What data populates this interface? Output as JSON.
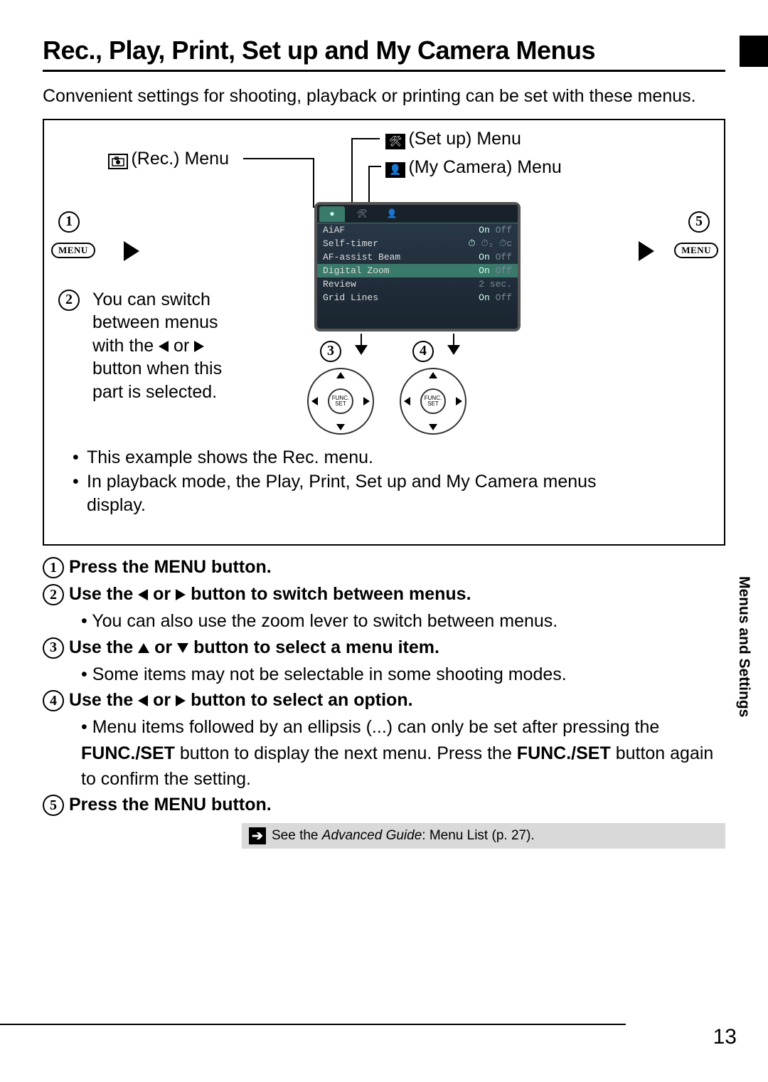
{
  "title": "Rec., Play, Print, Set up and My Camera Menus",
  "intro": "Convenient settings for shooting, playback or printing can be set with these menus.",
  "labels": {
    "rec": "(Rec.) Menu",
    "setup": "(Set up) Menu",
    "mycam": "(My Camera) Menu",
    "menu_btn": "MENU",
    "func": "FUNC.\nSET"
  },
  "switch_text": {
    "l1": "You can switch",
    "l2": "between menus",
    "l3a": "with the ",
    "l3b": " or ",
    "l4": "button when this",
    "l5": "part is selected."
  },
  "screen": {
    "rows": [
      {
        "name": "AiAF",
        "sel": "On",
        "opt": "Off"
      },
      {
        "name": "Self-timer",
        "sel": "⏱",
        "opt": "⏱₂ ⏱ᴄ"
      },
      {
        "name": "AF-assist Beam",
        "sel": "On",
        "opt": "Off"
      },
      {
        "name": "Digital Zoom",
        "sel": "On",
        "opt": "Off",
        "hl": true
      },
      {
        "name": "Review",
        "sel": "",
        "opt": "2 sec."
      },
      {
        "name": "Grid Lines",
        "sel": "On",
        "opt": "Off"
      }
    ]
  },
  "box_bullets": [
    "This example shows the Rec. menu.",
    "In playback mode, the Play, Print, Set up and My Camera menus display."
  ],
  "steps": {
    "s1": "Press the MENU button.",
    "s2a": "Use the ",
    "s2b": " or ",
    "s2c": " button to switch between menus.",
    "s2sub": "You can also use the zoom lever to switch between menus.",
    "s3a": "Use the ",
    "s3b": " or ",
    "s3c": " button to select a menu item.",
    "s3sub": "Some items may not be selectable in some shooting modes.",
    "s4a": "Use the ",
    "s4b": " or ",
    "s4c": " button to select an option.",
    "s4sub1": "Menu items followed by an ellipsis (...) can only be set after pressing the ",
    "s4sub_btn": "FUNC./SET",
    "s4sub2": " button to display the next menu. Press the ",
    "s4sub3": " button again to confirm the setting.",
    "s5": "Press the MENU button."
  },
  "reference": {
    "pre": "See the ",
    "guide": "Advanced Guide",
    "post": ": Menu List (p. 27)."
  },
  "side": "Menus and Settings",
  "page": "13"
}
